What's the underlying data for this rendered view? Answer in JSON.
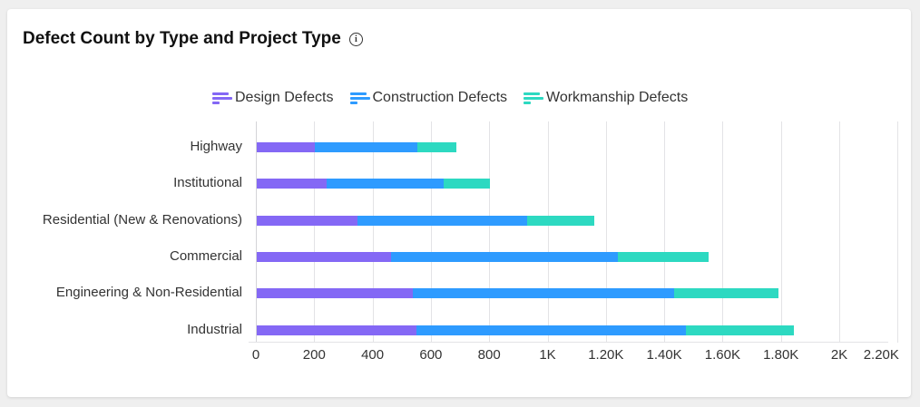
{
  "card": {
    "title": "Defect Count by Type and Project Type",
    "info_icon": "info-circle-icon"
  },
  "legend": [
    {
      "label": "Design Defects",
      "color": "#8468F5"
    },
    {
      "label": "Construction Defects",
      "color": "#2E9BFF"
    },
    {
      "label": "Workmanship Defects",
      "color": "#2DD9C1"
    }
  ],
  "chart_data": {
    "type": "bar",
    "orientation": "horizontal",
    "stacked": true,
    "title": "Defect Count by Type and Project Type",
    "xlabel": "",
    "ylabel": "",
    "categories": [
      "Highway",
      "Institutional",
      "Residential (New & Renovations)",
      "Commercial",
      "Engineering & Non-Residential",
      "Industrial"
    ],
    "series": [
      {
        "name": "Design Defects",
        "color": "#8468F5",
        "values": [
          200,
          240,
          345,
          460,
          535,
          547
        ]
      },
      {
        "name": "Construction Defects",
        "color": "#2E9BFF",
        "values": [
          350,
          400,
          582,
          778,
          895,
          924
        ]
      },
      {
        "name": "Workmanship Defects",
        "color": "#2DD9C1",
        "values": [
          135,
          160,
          230,
          310,
          360,
          369
        ]
      }
    ],
    "xlim": [
      0,
      2200
    ],
    "xticks": [
      "0",
      "200",
      "400",
      "600",
      "800",
      "1K",
      "1.20K",
      "1.40K",
      "1.60K",
      "1.80K",
      "2K",
      "2.20K"
    ],
    "grid": true,
    "legend_position": "top"
  }
}
